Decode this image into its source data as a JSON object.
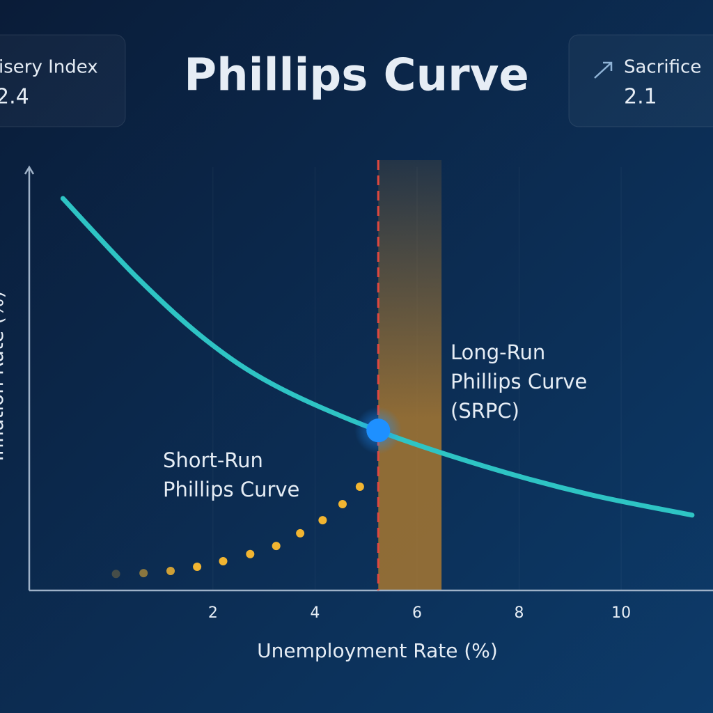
{
  "chart_data": {
    "type": "line",
    "title": "Phillips Curve",
    "x_label": "Unemployment Rate (%)",
    "y_label": "Inflation Rate (%)",
    "xlim": [
      -1.6,
      11.8
    ],
    "ylim": [
      0,
      10
    ],
    "xticks": [
      2,
      4,
      6,
      8,
      10
    ],
    "grid": true,
    "series": [
      {
        "type": "line",
        "color": "#2ec4c4",
        "x": [
          -0.94,
          0.53,
          1.89,
          3.25,
          5.22,
          7.33,
          9.37,
          11.39
        ],
        "values": [
          9.26,
          7.37,
          5.89,
          4.82,
          3.78,
          2.93,
          2.27,
          1.78
        ]
      },
      {
        "type": "scatter",
        "color": "#f2b531",
        "x": [
          0.1,
          0.64,
          1.17,
          1.69,
          2.2,
          2.73,
          3.24,
          3.71,
          4.15,
          4.54,
          4.88
        ],
        "values": [
          0.39,
          0.41,
          0.46,
          0.56,
          0.69,
          0.86,
          1.05,
          1.35,
          1.66,
          2.04,
          2.45
        ]
      }
    ],
    "vertical_line": {
      "x": 5.24,
      "color": "#e0483f"
    },
    "band": {
      "x": [
        5.24,
        6.48
      ],
      "color": "#b07b2e"
    },
    "highlight_point": {
      "x": 5.24,
      "y": 3.78,
      "color": "#1e90ff"
    },
    "annotations": [
      {
        "lines": [
          "Long-Run",
          "Phillips Curve",
          "(SRPC)"
        ]
      },
      {
        "lines": [
          "Short-Run",
          "Phillips Curve"
        ]
      }
    ]
  },
  "cards": [
    {
      "label": "isery Index",
      "value": 2.4
    },
    {
      "label": "Sacrifice",
      "value": 2.1
    }
  ]
}
